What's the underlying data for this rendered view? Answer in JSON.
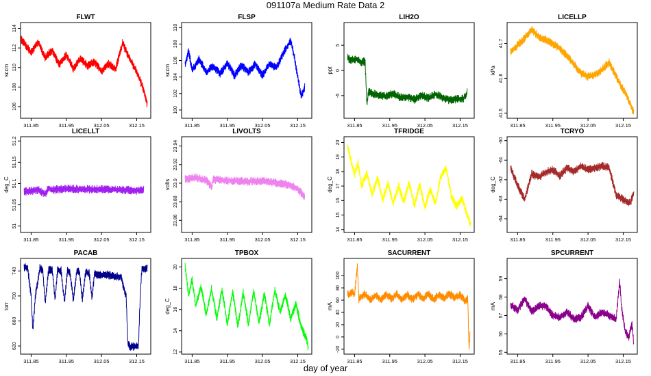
{
  "figure": {
    "title": "091107a   Medium Rate Data 2",
    "xlabel": "day of year"
  },
  "chart_data": [
    {
      "type": "line",
      "title": "FLWT",
      "ylabel": "sccm",
      "color": "#ff0000",
      "xlim": [
        311.82,
        312.19
      ],
      "ylim": [
        104.8,
        114.6
      ],
      "yticks": [
        106,
        108,
        110,
        112,
        114
      ],
      "xticks": [
        311.85,
        311.95,
        312.05,
        312.15
      ],
      "xticklabels": [
        "311.85",
        "311.95",
        "312.05",
        "312.15"
      ],
      "series": {
        "x": [
          311.82,
          311.83,
          311.85,
          311.87,
          311.89,
          311.91,
          311.93,
          311.95,
          311.97,
          311.99,
          312.01,
          312.03,
          312.05,
          312.07,
          312.09,
          312.11,
          312.13,
          312.15,
          312.17,
          312.18
        ],
        "y": [
          113.0,
          112.5,
          111.5,
          112.6,
          111.0,
          111.8,
          110.3,
          111.3,
          109.9,
          110.9,
          110.2,
          110.6,
          109.6,
          110.4,
          109.8,
          112.5,
          110.9,
          109.6,
          107.7,
          106.2
        ]
      }
    },
    {
      "type": "line",
      "title": "FLSP",
      "ylabel": "sccm",
      "color": "#0000ff",
      "xlim": [
        311.82,
        312.19
      ],
      "ylim": [
        99.0,
        110.6
      ],
      "yticks": [
        100,
        102,
        104,
        106,
        108,
        110
      ],
      "xticks": [
        311.85,
        311.95,
        312.05,
        312.15
      ],
      "xticklabels": [
        "311.85",
        "311.95",
        "312.05",
        "312.15"
      ],
      "series": {
        "x": [
          311.83,
          311.84,
          311.85,
          311.87,
          311.89,
          311.91,
          311.93,
          311.95,
          311.97,
          311.99,
          312.01,
          312.03,
          312.05,
          312.07,
          312.09,
          312.11,
          312.13,
          312.14,
          312.16,
          312.17
        ],
        "y": [
          105.4,
          107.2,
          104.8,
          106.2,
          104.6,
          105.3,
          104.4,
          105.7,
          104.2,
          105.4,
          104.6,
          105.6,
          104.2,
          105.6,
          105.1,
          107.0,
          108.4,
          106.5,
          101.6,
          102.8
        ]
      }
    },
    {
      "type": "line",
      "title": "LIH2O",
      "ylabel": "ppt",
      "color": "#006400",
      "xlim": [
        311.82,
        312.19
      ],
      "ylim": [
        -9.5,
        9.5
      ],
      "yticks": [
        -5,
        0,
        5
      ],
      "xticks": [
        311.85,
        311.95,
        312.05,
        312.15
      ],
      "xticklabels": [
        "311.85",
        "311.95",
        "312.05",
        "312.15"
      ],
      "series": {
        "x": [
          311.83,
          311.84,
          311.855,
          311.87,
          311.88,
          311.885,
          311.89,
          311.9,
          311.92,
          311.94,
          311.96,
          311.98,
          312.0,
          312.02,
          312.04,
          312.06,
          312.08,
          312.1,
          312.12,
          312.14,
          312.16,
          312.17
        ],
        "y": [
          2.5,
          2.0,
          2.3,
          1.6,
          1.8,
          -7.0,
          -4.2,
          -4.6,
          -4.9,
          -5.1,
          -4.6,
          -5.4,
          -5.2,
          -5.8,
          -5.0,
          -5.5,
          -4.7,
          -5.4,
          -5.9,
          -5.7,
          -5.6,
          -4.4
        ]
      }
    },
    {
      "type": "line",
      "title": "LICELLP",
      "ylabel": "kPa",
      "color": "#ffa500",
      "xlim": [
        311.82,
        312.19
      ],
      "ylim": [
        41.485,
        41.76
      ],
      "yticks": [
        41.5,
        41.6,
        41.7
      ],
      "xticks": [
        311.85,
        311.95,
        312.05,
        312.15
      ],
      "xticklabels": [
        "311.85",
        "311.95",
        "312.05",
        "312.15"
      ],
      "series": {
        "x": [
          311.83,
          311.85,
          311.87,
          311.89,
          311.91,
          311.93,
          311.95,
          311.97,
          311.99,
          312.01,
          312.03,
          312.05,
          312.07,
          312.09,
          312.11,
          312.12,
          312.14,
          312.16,
          312.18
        ],
        "y": [
          41.675,
          41.695,
          41.715,
          41.74,
          41.72,
          41.71,
          41.7,
          41.685,
          41.665,
          41.64,
          41.615,
          41.605,
          41.61,
          41.625,
          41.645,
          41.625,
          41.585,
          41.55,
          41.5
        ]
      }
    },
    {
      "type": "line",
      "title": "LICELLT",
      "ylabel": "deg_C",
      "color": "#a020f0",
      "xlim": [
        311.82,
        312.19
      ],
      "ylim": [
        50.985,
        51.21
      ],
      "yticks": [
        51.0,
        51.05,
        51.1,
        51.15,
        51.2
      ],
      "xticks": [
        311.85,
        311.95,
        312.05,
        312.15
      ],
      "xticklabels": [
        "311.85",
        "311.95",
        "312.05",
        "312.15"
      ],
      "series": {
        "x": [
          311.83,
          311.87,
          311.89,
          311.9,
          311.91,
          311.95,
          312.0,
          312.05,
          312.1,
          312.15,
          312.17
        ],
        "y": [
          51.08,
          51.085,
          51.075,
          51.09,
          51.085,
          51.088,
          51.086,
          51.087,
          51.085,
          51.084,
          51.086
        ]
      }
    },
    {
      "type": "line",
      "title": "LIVOLTS",
      "ylabel": "volts",
      "color": "#ee82ee",
      "xlim": [
        311.82,
        312.19
      ],
      "ylim": [
        23.847,
        23.95
      ],
      "yticks": [
        23.86,
        23.88,
        23.9,
        23.92,
        23.94
      ],
      "xticks": [
        311.85,
        311.95,
        312.05,
        312.15
      ],
      "xticklabels": [
        "311.85",
        "311.95",
        "312.05",
        "312.15"
      ],
      "series": {
        "x": [
          311.83,
          311.86,
          311.89,
          311.905,
          311.91,
          311.95,
          312.0,
          312.05,
          312.1,
          312.13,
          312.15,
          312.17
        ],
        "y": [
          23.904,
          23.906,
          23.903,
          23.896,
          23.904,
          23.903,
          23.902,
          23.902,
          23.9,
          23.898,
          23.894,
          23.885
        ]
      }
    },
    {
      "type": "line",
      "title": "TFRIDGE",
      "ylabel": "deg_C",
      "color": "#ffff00",
      "xlim": [
        311.82,
        312.19
      ],
      "ylim": [
        13.8,
        20.4
      ],
      "yticks": [
        14,
        15,
        16,
        17,
        18,
        19,
        20
      ],
      "xticks": [
        311.85,
        311.95,
        312.05,
        312.15
      ],
      "xticklabels": [
        "311.85",
        "311.95",
        "312.05",
        "312.15"
      ],
      "series": {
        "x": [
          311.83,
          311.85,
          311.86,
          311.87,
          311.885,
          311.9,
          311.915,
          311.93,
          311.945,
          311.96,
          311.975,
          311.99,
          312.005,
          312.02,
          312.035,
          312.05,
          312.065,
          312.08,
          312.095,
          312.11,
          312.125,
          312.14,
          312.155,
          312.17,
          312.18
        ],
        "y": [
          19.7,
          17.8,
          18.6,
          17.0,
          17.9,
          16.4,
          17.6,
          16.0,
          17.2,
          15.8,
          17.0,
          15.9,
          17.2,
          15.7,
          17.1,
          15.5,
          16.8,
          15.8,
          17.6,
          18.3,
          16.3,
          15.6,
          16.2,
          15.0,
          14.3
        ]
      }
    },
    {
      "type": "line",
      "title": "TCRYO",
      "ylabel": "deg_C",
      "color": "#a52a2a",
      "xlim": [
        311.82,
        312.19
      ],
      "ylim": [
        -64.7,
        -59.8
      ],
      "yticks": [
        -64,
        -63,
        -62,
        -61,
        -60
      ],
      "xticks": [
        311.85,
        311.95,
        312.05,
        312.15
      ],
      "xticklabels": [
        "311.85",
        "311.95",
        "312.05",
        "312.15"
      ],
      "series": {
        "x": [
          311.83,
          311.85,
          311.87,
          311.89,
          311.91,
          311.93,
          311.95,
          311.97,
          311.99,
          312.01,
          312.03,
          312.05,
          312.07,
          312.09,
          312.11,
          312.13,
          312.15,
          312.17,
          312.18
        ],
        "y": [
          -61.4,
          -62.3,
          -63.0,
          -61.7,
          -61.9,
          -61.6,
          -61.5,
          -61.8,
          -61.4,
          -61.6,
          -61.3,
          -61.5,
          -61.4,
          -61.3,
          -61.4,
          -62.8,
          -63.0,
          -63.2,
          -62.7
        ]
      }
    },
    {
      "type": "line",
      "title": "PACAB",
      "ylabel": "torr",
      "color": "#00008b",
      "xlim": [
        311.82,
        312.19
      ],
      "ylim": [
        607,
        760
      ],
      "yticks": [
        620,
        660,
        700,
        740
      ],
      "xticks": [
        311.85,
        311.95,
        312.05,
        312.15
      ],
      "xticklabels": [
        "311.85",
        "311.95",
        "312.05",
        "312.15"
      ],
      "series": {
        "x": [
          311.83,
          311.84,
          311.85,
          311.855,
          311.862,
          311.875,
          311.883,
          311.89,
          311.9,
          311.91,
          311.918,
          311.925,
          311.935,
          311.945,
          311.953,
          311.96,
          311.97,
          311.98,
          311.988,
          311.995,
          312.005,
          312.015,
          312.023,
          312.03,
          312.045,
          312.06,
          312.075,
          312.09,
          312.105,
          312.12,
          312.125,
          312.13,
          312.145,
          312.155,
          312.16,
          312.165,
          312.175,
          312.18
        ],
        "y": [
          746,
          745,
          700,
          643,
          700,
          744,
          742,
          690,
          741,
          742,
          695,
          741,
          741,
          690,
          740,
          739,
          693,
          740,
          738,
          693,
          738,
          736,
          696,
          735,
          733,
          735,
          733,
          731,
          731,
          700,
          625,
          619,
          619,
          620,
          700,
          745,
          743,
          744
        ]
      }
    },
    {
      "type": "line",
      "title": "TPBOX",
      "ylabel": "deg_C",
      "color": "#00ff00",
      "xlim": [
        311.82,
        312.19
      ],
      "ylim": [
        11.8,
        20.8
      ],
      "yticks": [
        12,
        14,
        16,
        18,
        20
      ],
      "xticks": [
        311.85,
        311.95,
        312.05,
        312.15
      ],
      "xticklabels": [
        "311.85",
        "311.95",
        "312.05",
        "312.15"
      ],
      "series": {
        "x": [
          311.83,
          311.84,
          311.85,
          311.86,
          311.875,
          311.89,
          311.905,
          311.92,
          311.935,
          311.95,
          311.965,
          311.98,
          311.995,
          312.01,
          312.025,
          312.04,
          312.055,
          312.07,
          312.085,
          312.1,
          312.115,
          312.13,
          312.145,
          312.16,
          312.175,
          312.18
        ],
        "y": [
          20.1,
          17.3,
          18.8,
          16.3,
          18.2,
          15.5,
          17.9,
          15.2,
          17.9,
          14.6,
          17.7,
          14.4,
          17.6,
          14.6,
          17.7,
          14.7,
          17.5,
          14.6,
          17.9,
          15.7,
          17.4,
          15.1,
          16.6,
          14.3,
          13.3,
          12.4
        ]
      }
    },
    {
      "type": "line",
      "title": "SACURRENT",
      "ylabel": "mA",
      "color": "#ff8c00",
      "xlim": [
        311.82,
        312.19
      ],
      "ylim": [
        -28,
        128
      ],
      "yticks": [
        -20,
        0,
        20,
        40,
        60,
        80,
        100
      ],
      "xticks": [
        311.85,
        311.95,
        312.05,
        312.15
      ],
      "xticklabels": [
        "311.85",
        "311.95",
        "312.05",
        "312.15"
      ],
      "series": {
        "x": [
          311.83,
          311.845,
          311.85,
          311.858,
          311.862,
          311.88,
          311.895,
          311.91,
          311.925,
          311.94,
          311.955,
          311.97,
          311.985,
          312.0,
          312.015,
          312.03,
          312.045,
          312.06,
          312.075,
          312.09,
          312.105,
          312.12,
          312.135,
          312.15,
          312.165,
          312.172,
          312.175,
          312.178
        ],
        "y": [
          69,
          72,
          68,
          118,
          62,
          70,
          60,
          68,
          61,
          69,
          62,
          70,
          61,
          69,
          61,
          70,
          62,
          70,
          61,
          69,
          63,
          70,
          64,
          68,
          58,
          62,
          -22,
          5
        ]
      }
    },
    {
      "type": "line",
      "title": "SPCURRENT",
      "ylabel": "mA",
      "color": "#8b008b",
      "xlim": [
        311.82,
        312.19
      ],
      "ylim": [
        54.9,
        60.1
      ],
      "yticks": [
        55,
        56,
        57,
        58,
        59
      ],
      "xticks": [
        311.85,
        311.95,
        312.05,
        312.15
      ],
      "xticklabels": [
        "311.85",
        "311.95",
        "312.05",
        "312.15"
      ],
      "series": {
        "x": [
          311.83,
          311.85,
          311.87,
          311.89,
          311.91,
          311.93,
          311.95,
          311.97,
          311.99,
          312.01,
          312.03,
          312.05,
          312.07,
          312.09,
          312.11,
          312.13,
          312.14,
          312.145,
          312.155,
          312.165,
          312.175,
          312.18
        ],
        "y": [
          57.6,
          57.3,
          57.9,
          57.2,
          57.5,
          57.5,
          57.0,
          56.9,
          57.2,
          56.8,
          56.9,
          57.5,
          56.9,
          57.2,
          57.0,
          56.8,
          58.9,
          57.5,
          56.2,
          55.8,
          56.5,
          55.4
        ]
      }
    }
  ]
}
